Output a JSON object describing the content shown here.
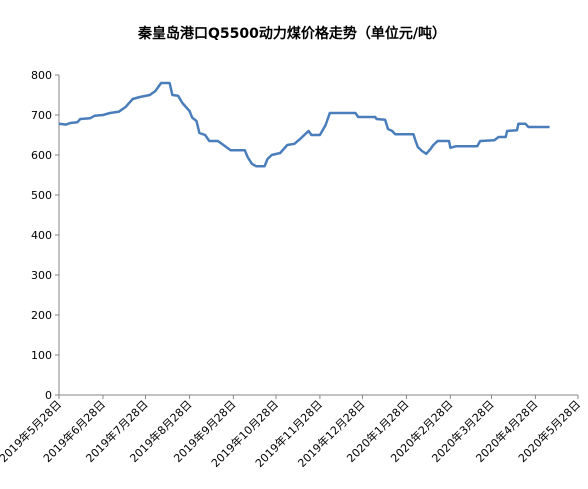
{
  "chart_data": {
    "type": "line",
    "title": "秦皇岛港口Q5500动力煤价格走势（单位元/吨）",
    "x": [
      "2019-05-28",
      "2019-06-02",
      "2019-06-05",
      "2019-06-10",
      "2019-06-12",
      "2019-06-19",
      "2019-06-22",
      "2019-06-28",
      "2019-07-03",
      "2019-07-09",
      "2019-07-14",
      "2019-07-19",
      "2019-07-24",
      "2019-07-31",
      "2019-08-04",
      "2019-08-08",
      "2019-08-14",
      "2019-08-16",
      "2019-08-20",
      "2019-08-23",
      "2019-08-28",
      "2019-08-30",
      "2019-09-02",
      "2019-09-04",
      "2019-09-08",
      "2019-09-11",
      "2019-09-17",
      "2019-09-21",
      "2019-09-26",
      "2019-10-06",
      "2019-10-08",
      "2019-10-11",
      "2019-10-14",
      "2019-10-20",
      "2019-10-22",
      "2019-10-25",
      "2019-10-31",
      "2019-11-05",
      "2019-11-10",
      "2019-11-14",
      "2019-11-17",
      "2019-11-20",
      "2019-11-22",
      "2019-11-28",
      "2019-12-02",
      "2019-12-05",
      "2019-12-23",
      "2019-12-25",
      "2020-01-06",
      "2020-01-07",
      "2020-01-13",
      "2020-01-15",
      "2020-01-18",
      "2020-01-20",
      "2020-02-02",
      "2020-02-03",
      "2020-02-05",
      "2020-02-08",
      "2020-02-11",
      "2020-02-14",
      "2020-02-16",
      "2020-02-19",
      "2020-02-27",
      "2020-02-28",
      "2020-03-03",
      "2020-03-18",
      "2020-03-20",
      "2020-03-30",
      "2020-04-02",
      "2020-04-07",
      "2020-04-08",
      "2020-04-15",
      "2020-04-16",
      "2020-04-21",
      "2020-04-23",
      "2020-05-08"
    ],
    "series": [
      {
        "color": "#4a7ebb",
        "values": [
          678,
          676,
          680,
          682,
          690,
          692,
          698,
          700,
          705,
          708,
          720,
          740,
          745,
          750,
          760,
          780,
          780,
          750,
          748,
          730,
          710,
          693,
          685,
          655,
          650,
          635,
          635,
          625,
          612,
          612,
          595,
          578,
          572,
          572,
          590,
          600,
          605,
          625,
          628,
          640,
          650,
          660,
          650,
          650,
          675,
          705,
          705,
          695,
          695,
          690,
          688,
          665,
          660,
          652,
          652,
          640,
          620,
          610,
          603,
          615,
          625,
          635,
          635,
          618,
          622,
          622,
          635,
          637,
          645,
          645,
          660,
          662,
          678,
          678,
          670,
          670
        ]
      }
    ],
    "xlim": [
      "2019-05-28",
      "2020-05-28"
    ],
    "xticks": [
      {
        "value": "2019-05-28",
        "label": "2019年5月28日"
      },
      {
        "value": "2019-06-28",
        "label": "2019年6月28日"
      },
      {
        "value": "2019-07-28",
        "label": "2019年7月28日"
      },
      {
        "value": "2019-08-28",
        "label": "2019年8月28日"
      },
      {
        "value": "2019-09-28",
        "label": "2019年9月28日"
      },
      {
        "value": "2019-10-28",
        "label": "2019年10月28日"
      },
      {
        "value": "2019-11-28",
        "label": "2019年11月28日"
      },
      {
        "value": "2019-12-28",
        "label": "2019年12月28日"
      },
      {
        "value": "2020-01-28",
        "label": "2020年1月28日"
      },
      {
        "value": "2020-02-28",
        "label": "2020年2月28日"
      },
      {
        "value": "2020-03-28",
        "label": "2020年3月28日"
      },
      {
        "value": "2020-04-28",
        "label": "2020年4月28日"
      },
      {
        "value": "2020-05-28",
        "label": "2020年5月28日"
      }
    ],
    "ylim": [
      0,
      800
    ],
    "yticks": [
      0,
      100,
      200,
      300,
      400,
      500,
      600,
      700,
      800
    ],
    "grid": false
  }
}
